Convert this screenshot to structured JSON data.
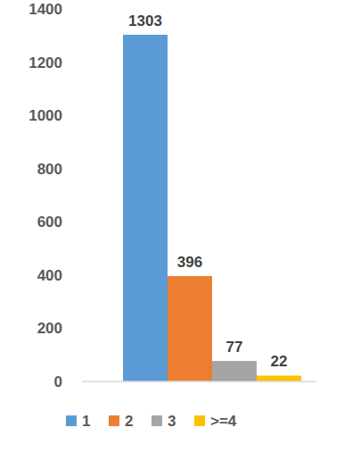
{
  "chart_data": {
    "type": "bar",
    "categories": [
      "1",
      "2",
      "3",
      ">=4"
    ],
    "values": [
      1303,
      396,
      77,
      22
    ],
    "colors": [
      "#5b9bd5",
      "#ed7d31",
      "#a5a5a5",
      "#ffc000"
    ],
    "ylim": [
      0,
      1400
    ],
    "yticks": [
      0,
      200,
      400,
      600,
      800,
      1000,
      1200,
      1400
    ],
    "grid": false,
    "data_labels": true,
    "legend": "bottom",
    "tick_labels": "y"
  }
}
